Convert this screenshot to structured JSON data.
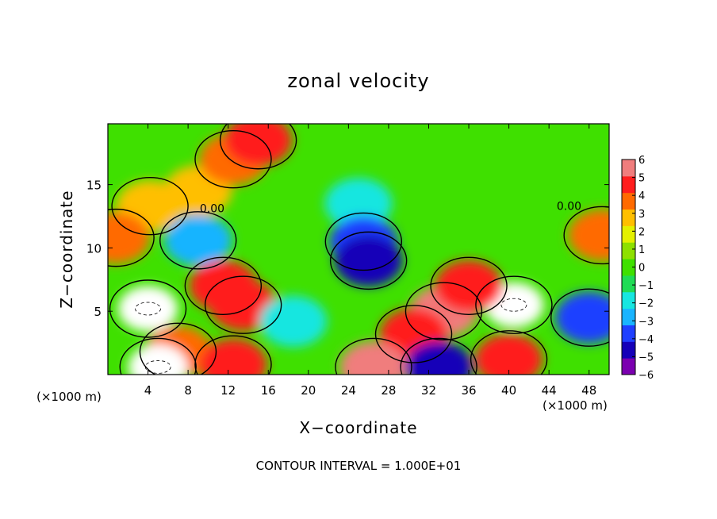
{
  "chart_data": {
    "type": "heatmap",
    "title": "zonal velocity",
    "xlabel": "X−coordinate",
    "ylabel": "Z−coordinate",
    "x_units_label": "(×1000 m)",
    "footer": "CONTOUR INTERVAL = 1.000E+01",
    "xlim": [
      0,
      50
    ],
    "ylim": [
      0,
      19.8
    ],
    "x_ticks": [
      4,
      8,
      12,
      16,
      20,
      24,
      28,
      32,
      36,
      40,
      44,
      48
    ],
    "y_ticks": [
      5,
      10,
      15
    ],
    "colorbar": {
      "ticks": [
        6,
        5,
        4,
        3,
        2,
        1,
        0,
        -1,
        -2,
        -3,
        -4,
        -5,
        -6
      ],
      "tick_labels": [
        "6",
        "5",
        "4",
        "3",
        "2",
        "1",
        "0",
        "−1",
        "−2",
        "−3",
        "−4",
        "−5",
        "−6"
      ],
      "range": [
        -6,
        6
      ],
      "colors": [
        "#7b00b0",
        "#1500b8",
        "#1f3fff",
        "#19b4ff",
        "#17e6e0",
        "#20dc55",
        "#3fe000",
        "#8ee000",
        "#e4f000",
        "#ffbf00",
        "#ff6a00",
        "#ff1d1d",
        "#f07d7d"
      ]
    },
    "contour_labels": [
      {
        "text": "0.00",
        "x": 10.4,
        "z": 12.8
      },
      {
        "text": "0.00",
        "x": 46.0,
        "z": 13.0
      }
    ],
    "features": [
      {
        "x": 4.2,
        "z": 13.3,
        "value": 3.2
      },
      {
        "x": 9.0,
        "z": 14.5,
        "value": 2.5
      },
      {
        "x": 12.5,
        "z": 17.0,
        "value": 4.0
      },
      {
        "x": 15.0,
        "z": 18.5,
        "value": 4.5
      },
      {
        "x": 0.8,
        "z": 10.8,
        "value": 4.2
      },
      {
        "x": 49.3,
        "z": 11.0,
        "value": 4.3
      },
      {
        "x": 9.0,
        "z": 10.6,
        "value": -3.0
      },
      {
        "x": 25.0,
        "z": 13.5,
        "value": -2.0
      },
      {
        "x": 25.5,
        "z": 10.5,
        "value": -4.5
      },
      {
        "x": 26.0,
        "z": 9.0,
        "value": -5.5
      },
      {
        "x": 4.0,
        "z": 5.2,
        "value": -6.5
      },
      {
        "x": 40.5,
        "z": 5.5,
        "value": -6.5
      },
      {
        "x": 48.0,
        "z": 4.5,
        "value": -4.2
      },
      {
        "x": 11.5,
        "z": 7.0,
        "value": 5.2
      },
      {
        "x": 13.5,
        "z": 5.5,
        "value": 5.0
      },
      {
        "x": 33.5,
        "z": 5.0,
        "value": 5.5
      },
      {
        "x": 30.5,
        "z": 3.2,
        "value": 5.0
      },
      {
        "x": 36.0,
        "z": 7.0,
        "value": 4.5
      },
      {
        "x": 7.0,
        "z": 1.8,
        "value": 4.0
      },
      {
        "x": 12.5,
        "z": 0.8,
        "value": 5.0
      },
      {
        "x": 26.5,
        "z": 0.6,
        "value": 5.5
      },
      {
        "x": 40.0,
        "z": 1.2,
        "value": 5.0
      },
      {
        "x": 33.0,
        "z": 0.6,
        "value": -4.8
      },
      {
        "x": 5.0,
        "z": 0.6,
        "value": 6.5
      },
      {
        "x": 18.5,
        "z": 4.2,
        "value": -2.2
      }
    ]
  }
}
